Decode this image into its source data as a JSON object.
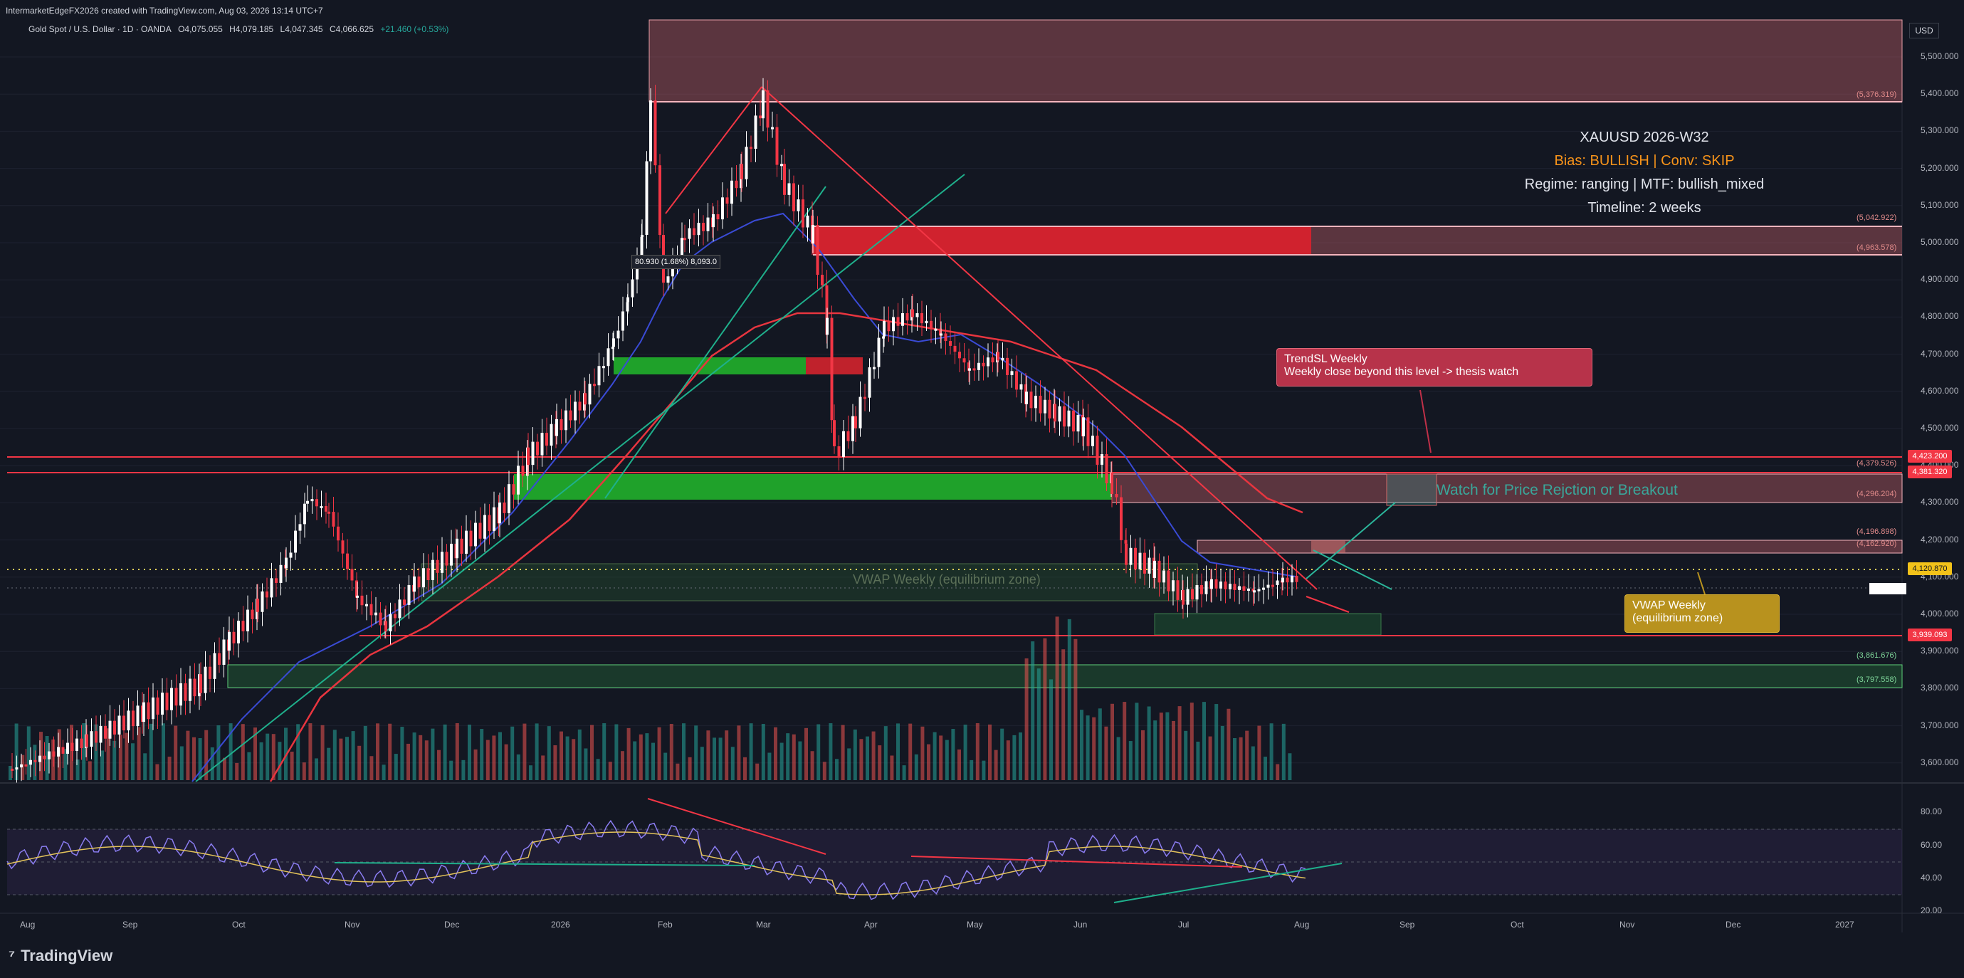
{
  "header": {
    "created_by": "IntermarketEdgeFX2026 created with TradingView.com, Aug 03, 2026 13:14 UTC+7",
    "symbol": "Gold Spot / U.S. Dollar · 1D · OANDA",
    "open": "O4,075.055",
    "high": "H4,079.185",
    "low": "L4,047.345",
    "close": "C4,066.625",
    "change": "+21.460 (+0.53%)"
  },
  "price_axis": {
    "currency": "USD",
    "labels": [
      "5,500.000",
      "5,400.000",
      "5,300.000",
      "5,200.000",
      "5,100.000",
      "5,000.000",
      "4,900.000",
      "4,800.000",
      "4,700.000",
      "4,600.000",
      "4,500.000",
      "4,400.000",
      "4,300.000",
      "4,200.000",
      "4,100.000",
      "4,000.000",
      "3,900.000",
      "3,800.000",
      "3,700.000",
      "3,600.000"
    ]
  },
  "levels": {
    "l5376": "(5,376.319)",
    "l5042": "(5,042.922)",
    "l4963": "(4,963.578)",
    "l4379": "(4,379.526)",
    "l4296": "(4,296.204)",
    "l4196": "(4,196.898)",
    "l4162": "(4,162.920)",
    "l3861": "(3,861.676)",
    "l3797": "(3,797.558)"
  },
  "price_tags": {
    "p4423": "4,423.200",
    "p4381": "4,381.320",
    "p4120": "4,120.870",
    "p3939": "3,939.093"
  },
  "time_axis": [
    "Aug",
    "Sep",
    "Oct",
    "Nov",
    "Dec",
    "2026",
    "Feb",
    "Mar",
    "Apr",
    "May",
    "Jun",
    "Jul",
    "Aug",
    "Sep",
    "Oct",
    "Nov",
    "Dec",
    "2027"
  ],
  "rsi_axis": [
    "80.00",
    "60.00",
    "40.00",
    "20.00"
  ],
  "info_panel": {
    "title": "XAUUSD 2026-W32",
    "bias": "Bias: BULLISH | Conv: SKIP",
    "regime": "Regime: ranging | MTF: bullish_mixed",
    "timeline": "Timeline: 2 weeks"
  },
  "annotations": {
    "trendsl_title": "TrendSL Weekly",
    "trendsl_body": "Weekly close beyond this level -> thesis watch",
    "vwap_title": "VWAP Weekly",
    "vwap_body": "(equilibrium zone)",
    "vwap_zone": "VWAP Weekly (equilibrium zone)",
    "watch": "Watch for Price Rejction or Breakout",
    "measure": "80.930 (1.68%) 8,093.0"
  },
  "footer": {
    "brand": "TradingView"
  },
  "colors": {
    "bull": "#26a69a",
    "bear": "#ef5350",
    "background": "#131722",
    "grid": "#1e2230",
    "level_red": "#f23645",
    "green_zone": "#1fa12a"
  }
}
